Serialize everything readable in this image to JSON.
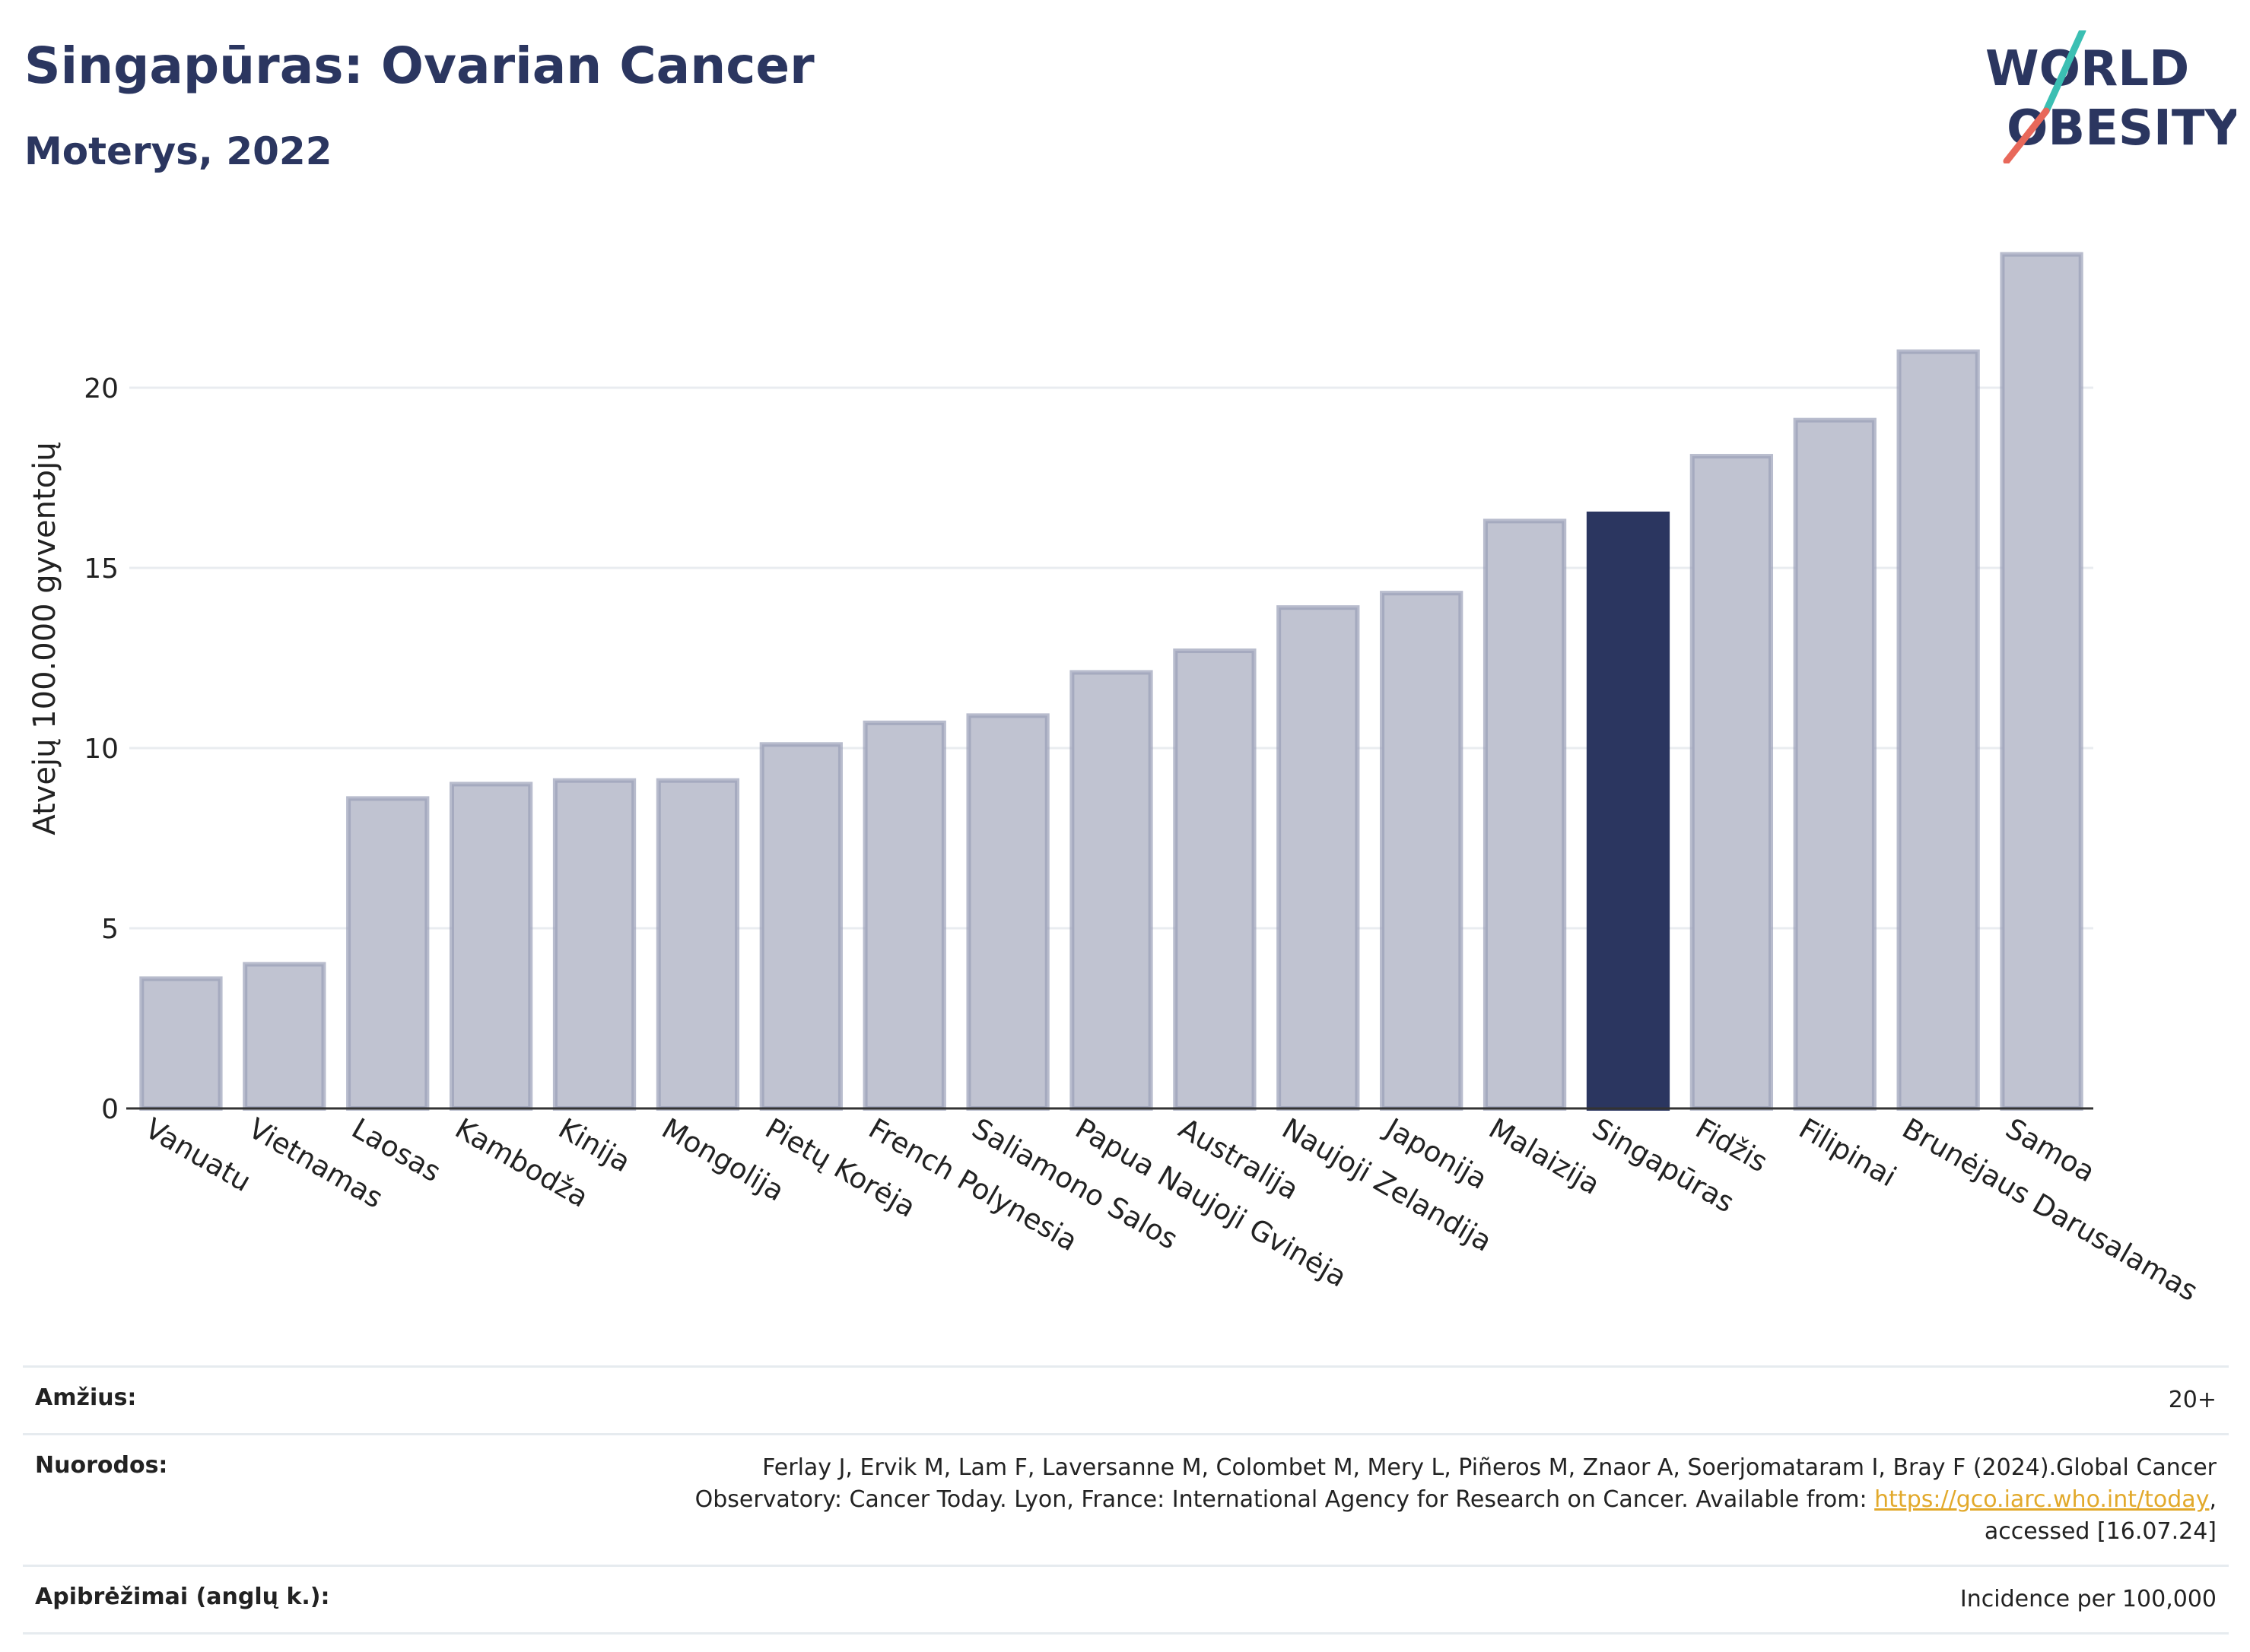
{
  "header": {
    "title": "Singapūras: Ovarian Cancer",
    "subtitle": "Moterys, 2022"
  },
  "logo": {
    "line1": "WORLD",
    "line2": "OBESITY"
  },
  "chart_data": {
    "type": "bar",
    "ylabel": "Atvejų 100.000 gyventojų",
    "ylim": [
      0,
      25
    ],
    "yticks": [
      0,
      5,
      10,
      15,
      20
    ],
    "grid": true,
    "categories": [
      "Vanuatu",
      "Vietnamas",
      "Laosas",
      "Kambodža",
      "Kinija",
      "Mongolija",
      "Pietų Korėja",
      "French Polynesia",
      "Saliamono Salos",
      "Papua Naujoji Gvinėja",
      "Australija",
      "Naujoji Zelandija",
      "Japonija",
      "Malaizija",
      "Singapūras",
      "Fidžis",
      "Filipinai",
      "Brunėjaus Darusalamas",
      "Samoa"
    ],
    "values": [
      3.6,
      4.0,
      8.6,
      9.0,
      9.1,
      9.1,
      10.1,
      10.7,
      10.9,
      12.1,
      12.7,
      13.9,
      14.3,
      16.3,
      16.5,
      18.1,
      19.1,
      21.0,
      23.7
    ],
    "highlight": "Singapūras",
    "colors": {
      "bar": "#c0c3d1",
      "bar_edge": "#9aa0b8",
      "highlight": "#2b3660",
      "grid": "#e9ecf0",
      "axis": "#333333"
    }
  },
  "footer": {
    "age": {
      "label": "Amžius:",
      "value": "20+"
    },
    "refs": {
      "label": "Nuorodos:",
      "text_before": "Ferlay J, Ervik M, Lam F, Laversanne M, Colombet M, Mery L, Piñeros M, Znaor A, Soerjomataram I, Bray F (2024).Global Cancer Observatory: Cancer Today. Lyon, France: International Agency for Research on Cancer. Available from: ",
      "link": "https://gco.iarc.who.int/today",
      "text_after": ", accessed [16.07.24]"
    },
    "definitions": {
      "label": "Apibrėžimai (anglų k.):",
      "value": "Incidence per 100,000"
    }
  }
}
